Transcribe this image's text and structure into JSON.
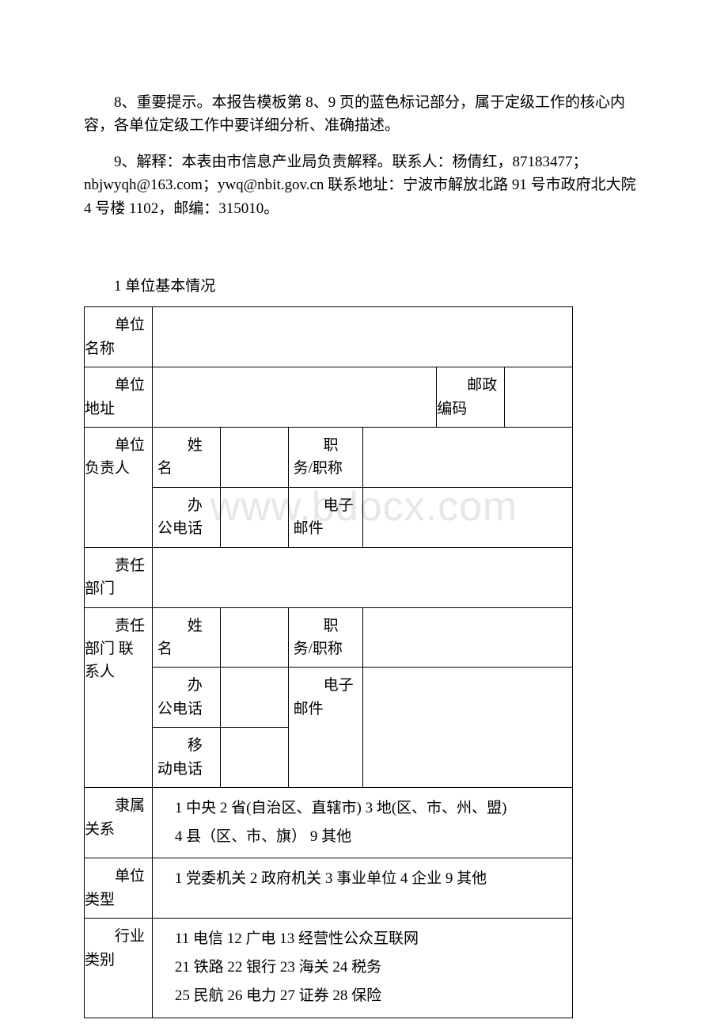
{
  "paragraphs": {
    "p8": "8、重要提示。本报告模板第 8、9 页的蓝色标记部分，属于定级工作的核心内容，各单位定级工作中要详细分析、准确描述。",
    "p9a": "9、解释：本表由市信息产业局负责解释。联系人：杨倩红，87183477；nbjwyqh@163.com；ywq@nbit.gov.cn 联系地址：宁波市解放北路 91 号市政府北大院 4 号楼 1102，邮编：315010。"
  },
  "section_title": "1 单位基本情况",
  "labels": {
    "unit_name": "单位名称",
    "unit_addr": "单位地址",
    "postcode": "邮政编码",
    "unit_leader": "单位负责人",
    "name": "姓名",
    "title": "职务/职称",
    "office_phone": "办公电话",
    "email": "电子邮件",
    "resp_dept": "责任部门",
    "resp_contact": "责任部门   联系人",
    "mobile": "移动电话",
    "affiliation": "隶属关系",
    "unit_type": "单位类型",
    "industry": "行业类别"
  },
  "body": {
    "affiliation": "1 中央  2 省(自治区、直辖市)  3 地(区、市、州、盟)\n4 县（区、市、旗）  9 其他",
    "unit_type": "1 党委机关  2 政府机关  3 事业单位  4 企业  9 其他",
    "industry": "11 电信  12 广电  13 经营性公众互联网\n21 铁路  22 银行  23 海关  24 税务\n25 民航  26 电力  27 证券  28 保险"
  },
  "watermark": "www.bdocx.com"
}
